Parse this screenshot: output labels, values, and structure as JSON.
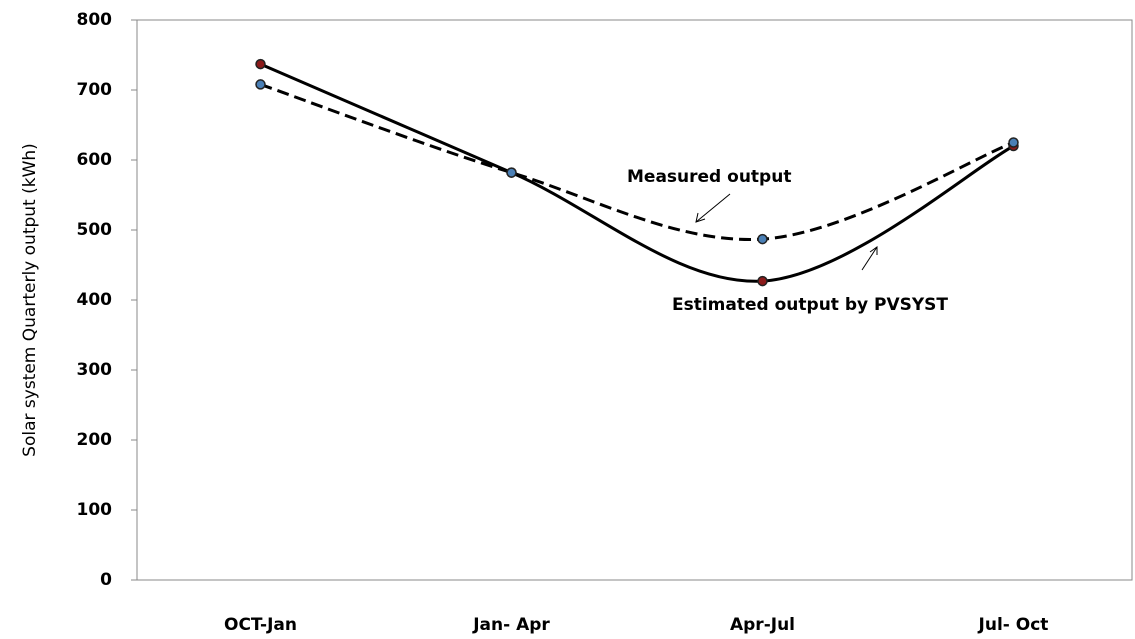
{
  "chart_data": {
    "type": "line",
    "y_label": "Solar system Quarterly output (kWh)",
    "categories": [
      "OCT-Jan",
      "Jan- Apr",
      "Apr-Jul",
      "Jul- Oct"
    ],
    "series": [
      {
        "name": "Estimated output by  PVSYST",
        "color": "#000000",
        "marker_color": "#8b1a1a",
        "dashed": false,
        "values": [
          737,
          582,
          427,
          620
        ]
      },
      {
        "name": "Measured output",
        "color": "#000000",
        "marker_color": "#4a7fb5",
        "dashed": true,
        "values": [
          708,
          582,
          487,
          625
        ]
      }
    ],
    "ylim": [
      0,
      800
    ],
    "yticks": [
      0,
      100,
      200,
      300,
      400,
      500,
      600,
      700,
      800
    ]
  }
}
